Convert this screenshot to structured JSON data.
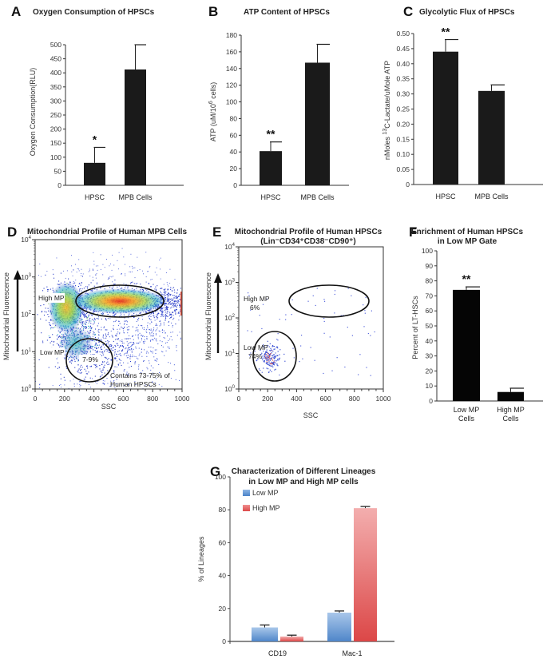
{
  "chart_data": [
    {
      "id": "A",
      "type": "bar",
      "panel_label": "A",
      "title": "Oxygen Consumption of HPSCs",
      "xlabel": "",
      "ylabel": "Oxygen Consumption(RLU)",
      "ylim": [
        0,
        500
      ],
      "yticks": [
        0,
        50,
        100,
        150,
        200,
        250,
        300,
        350,
        400,
        450,
        500
      ],
      "categories": [
        "HPSC",
        "MPB Cells"
      ],
      "values": [
        80,
        412
      ],
      "errors": [
        55,
        88
      ],
      "significance": [
        "*",
        ""
      ],
      "bar_color": "#1a1a1a"
    },
    {
      "id": "B",
      "type": "bar",
      "panel_label": "B",
      "title": "ATP Content  of HPSCs",
      "xlabel": "",
      "ylabel": "ATP (uM/10^6 cells)",
      "ylim": [
        0,
        180
      ],
      "yticks": [
        0,
        20,
        40,
        60,
        80,
        100,
        120,
        140,
        160,
        180
      ],
      "categories": [
        "HPSC",
        "MPB Cells"
      ],
      "values": [
        41,
        147
      ],
      "errors": [
        11,
        22
      ],
      "significance": [
        "**",
        ""
      ],
      "bar_color": "#1a1a1a"
    },
    {
      "id": "C",
      "type": "bar",
      "panel_label": "C",
      "title": "Glycolytic Flux of HPSCs",
      "xlabel": "",
      "ylabel": "nMoles 13C-Lactate/uMole ATP",
      "ylim": [
        0,
        0.5
      ],
      "yticks": [
        "0",
        "0.05",
        "0.10",
        "0.15",
        "0.20",
        "0.25",
        "0.30",
        "0.35",
        "0.40",
        "0.45",
        "0.50"
      ],
      "categories": [
        "HPSC",
        "MPB Cells"
      ],
      "values": [
        0.44,
        0.31
      ],
      "errors": [
        0.04,
        0.02
      ],
      "significance": [
        "**",
        ""
      ],
      "bar_color": "#1a1a1a"
    },
    {
      "id": "D",
      "type": "scatter",
      "panel_label": "D",
      "title": "Mitochondrial Profile of Human MPB Cells",
      "xlabel": "SSC",
      "ylabel": "Mitochondrial Fluorescence",
      "xlim": [
        0,
        1000
      ],
      "xticks": [
        0,
        200,
        400,
        600,
        800,
        1000
      ],
      "ylim_log10": [
        0,
        4
      ],
      "yticks": [
        "10^0",
        "10^1",
        "10^2",
        "10^3",
        "10^4"
      ],
      "gates": [
        {
          "name": "High MP",
          "label": "High MP",
          "center_ssc": 600,
          "center_log": 2.5
        },
        {
          "name": "Low MP",
          "label": "Low MP",
          "center_ssc": 380,
          "center_log": 1.0,
          "percent": "7-9%"
        }
      ],
      "annotation": "Contains 73-75% of Human HPSCs"
    },
    {
      "id": "E",
      "type": "scatter",
      "panel_label": "E",
      "title": "Mitochondrial Profile of Human HPSCs",
      "subtitle": "(Lin⁻CD34⁺CD38⁻CD90⁺)",
      "xlabel": "SSC",
      "ylabel": "Mitochondrial Fluorescence",
      "xlim": [
        0,
        1000
      ],
      "xticks": [
        0,
        200,
        400,
        600,
        800,
        1000
      ],
      "ylim_log10": [
        0,
        4
      ],
      "yticks": [
        "10^0",
        "10^1",
        "10^2",
        "10^3",
        "10^4"
      ],
      "gates": [
        {
          "name": "High MP",
          "label": "High MP",
          "percent": "6%",
          "center_ssc": 620,
          "center_log": 2.6
        },
        {
          "name": "Low MP",
          "label": "Low MP",
          "percent": "74%",
          "center_ssc": 350,
          "center_log": 1.0
        }
      ]
    },
    {
      "id": "F",
      "type": "bar",
      "panel_label": "F",
      "title": "Enrichment of Human HPSCs",
      "subtitle": "in Low MP Gate",
      "xlabel": "",
      "ylabel": "Percent of LT-HSCs",
      "ylim": [
        0,
        100
      ],
      "yticks": [
        0,
        10,
        20,
        30,
        40,
        50,
        60,
        70,
        80,
        90,
        100
      ],
      "categories": [
        "Low MP Cells",
        "High MP Cells"
      ],
      "category_lines": [
        [
          "Low MP",
          "Cells"
        ],
        [
          "High MP",
          "Cells"
        ]
      ],
      "values": [
        74,
        6
      ],
      "errors": [
        2,
        2.5
      ],
      "significance": [
        "**",
        ""
      ],
      "bar_color": "#050505"
    },
    {
      "id": "G",
      "type": "bar",
      "panel_label": "G",
      "title": "Characterization of Different Lineages",
      "subtitle": "in Low MP and High MP cells",
      "xlabel": "",
      "ylabel": "% of Lineages",
      "ylim": [
        0,
        100
      ],
      "yticks": [
        0,
        20,
        40,
        60,
        80,
        100
      ],
      "categories": [
        "CD19",
        "Mac-1"
      ],
      "series": [
        {
          "name": "Low MP",
          "values": [
            8.5,
            17.5
          ],
          "errors": [
            1.5,
            1.0
          ],
          "color": "#5b8fd0"
        },
        {
          "name": "High MP",
          "values": [
            3,
            81
          ],
          "errors": [
            0.8,
            1.0
          ],
          "color": "#e05555"
        }
      ],
      "legend": "top-left"
    }
  ]
}
